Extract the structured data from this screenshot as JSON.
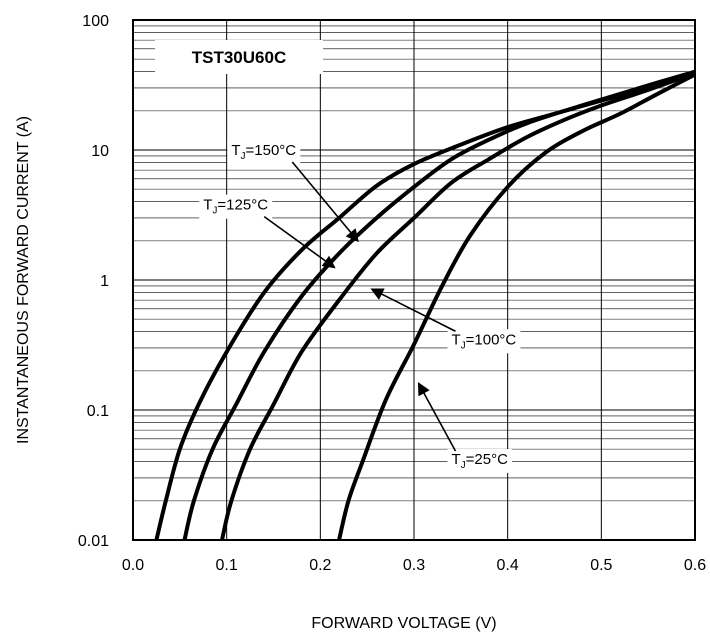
{
  "chart_data": {
    "type": "line",
    "title": "TST30U60C",
    "xlabel": "FORWARD VOLTAGE (V)",
    "ylabel": "INSTANTANEOUS FORWARD CURRENT (A)",
    "xlim": [
      0.0,
      0.6
    ],
    "ylim": [
      0.01,
      100
    ],
    "yscale": "log",
    "grid": true,
    "x_ticks": [
      "0.0",
      "0.1",
      "0.2",
      "0.3",
      "0.4",
      "0.5",
      "0.6"
    ],
    "y_ticks": [
      "0.01",
      "0.1",
      "1",
      "10",
      "100"
    ],
    "series": [
      {
        "name": "T_J=150°C",
        "points": [
          [
            0.025,
            0.01
          ],
          [
            0.035,
            0.02
          ],
          [
            0.05,
            0.05
          ],
          [
            0.07,
            0.11
          ],
          [
            0.1,
            0.28
          ],
          [
            0.14,
            0.8
          ],
          [
            0.18,
            1.7
          ],
          [
            0.22,
            3.0
          ],
          [
            0.26,
            5.3
          ],
          [
            0.3,
            7.8
          ],
          [
            0.35,
            11
          ],
          [
            0.4,
            15
          ],
          [
            0.45,
            19
          ],
          [
            0.5,
            24
          ],
          [
            0.55,
            30
          ],
          [
            0.6,
            40
          ]
        ]
      },
      {
        "name": "T_J=125°C",
        "points": [
          [
            0.055,
            0.01
          ],
          [
            0.065,
            0.02
          ],
          [
            0.085,
            0.05
          ],
          [
            0.11,
            0.11
          ],
          [
            0.14,
            0.28
          ],
          [
            0.18,
            0.75
          ],
          [
            0.22,
            1.6
          ],
          [
            0.26,
            3.0
          ],
          [
            0.3,
            5.2
          ],
          [
            0.34,
            8.5
          ],
          [
            0.38,
            12
          ],
          [
            0.42,
            16
          ],
          [
            0.47,
            21
          ],
          [
            0.52,
            27
          ],
          [
            0.56,
            33
          ],
          [
            0.6,
            40
          ]
        ]
      },
      {
        "name": "T_J=100°C",
        "points": [
          [
            0.095,
            0.01
          ],
          [
            0.105,
            0.02
          ],
          [
            0.125,
            0.05
          ],
          [
            0.15,
            0.11
          ],
          [
            0.18,
            0.28
          ],
          [
            0.22,
            0.7
          ],
          [
            0.26,
            1.6
          ],
          [
            0.3,
            3.0
          ],
          [
            0.34,
            5.6
          ],
          [
            0.38,
            8.5
          ],
          [
            0.42,
            12.5
          ],
          [
            0.46,
            17
          ],
          [
            0.5,
            22
          ],
          [
            0.55,
            29
          ],
          [
            0.6,
            39
          ]
        ]
      },
      {
        "name": "T_J=25°C",
        "points": [
          [
            0.22,
            0.01
          ],
          [
            0.23,
            0.02
          ],
          [
            0.245,
            0.04
          ],
          [
            0.27,
            0.12
          ],
          [
            0.3,
            0.32
          ],
          [
            0.33,
            0.9
          ],
          [
            0.36,
            2.2
          ],
          [
            0.4,
            5.2
          ],
          [
            0.44,
            9.5
          ],
          [
            0.48,
            14
          ],
          [
            0.52,
            19
          ],
          [
            0.56,
            27
          ],
          [
            0.6,
            38
          ]
        ]
      }
    ],
    "annotations": [
      {
        "text": "T",
        "sub": "J",
        "rest": "=150°C",
        "x": 0.105,
        "y": 10,
        "arrow_to": [
          0.24,
          2.0
        ]
      },
      {
        "text": "T",
        "sub": "J",
        "rest": "=125°C",
        "x": 0.075,
        "y": 3.8,
        "arrow_to": [
          0.215,
          1.25
        ]
      },
      {
        "text": "T",
        "sub": "J",
        "rest": "=100°C",
        "x": 0.34,
        "y": 0.35,
        "arrow_to": [
          0.255,
          0.85
        ]
      },
      {
        "text": "T",
        "sub": "J",
        "rest": "=25°C",
        "x": 0.34,
        "y": 0.042,
        "arrow_to": [
          0.305,
          0.16
        ]
      }
    ]
  }
}
